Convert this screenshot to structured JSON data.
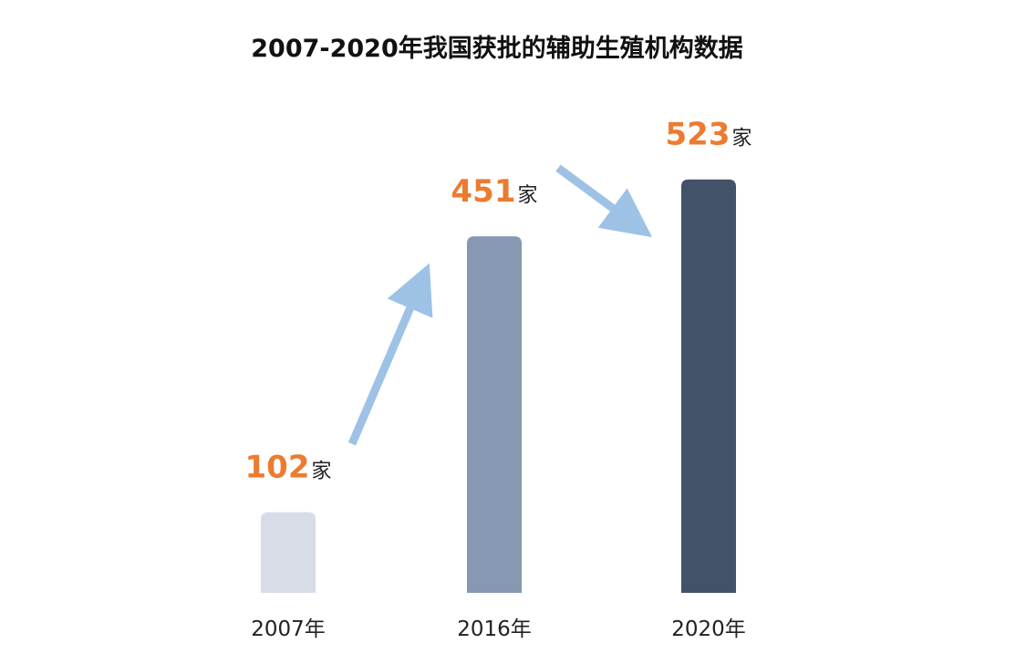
{
  "chart_data": {
    "type": "bar",
    "title": "2007-2020年我国获批的辅助生殖机构数据",
    "categories": [
      "2007年",
      "2016年",
      "2020年"
    ],
    "values": [
      102,
      451,
      523
    ],
    "value_unit": "家",
    "xlabel": "",
    "ylabel": "",
    "ylim": [
      0,
      600
    ],
    "grid": false,
    "legend": "none",
    "colors": {
      "bars": [
        "#d7dce7",
        "#8698b2",
        "#435269"
      ],
      "value_label": "#ec7b30",
      "arrow": "#9ec2e6"
    }
  }
}
